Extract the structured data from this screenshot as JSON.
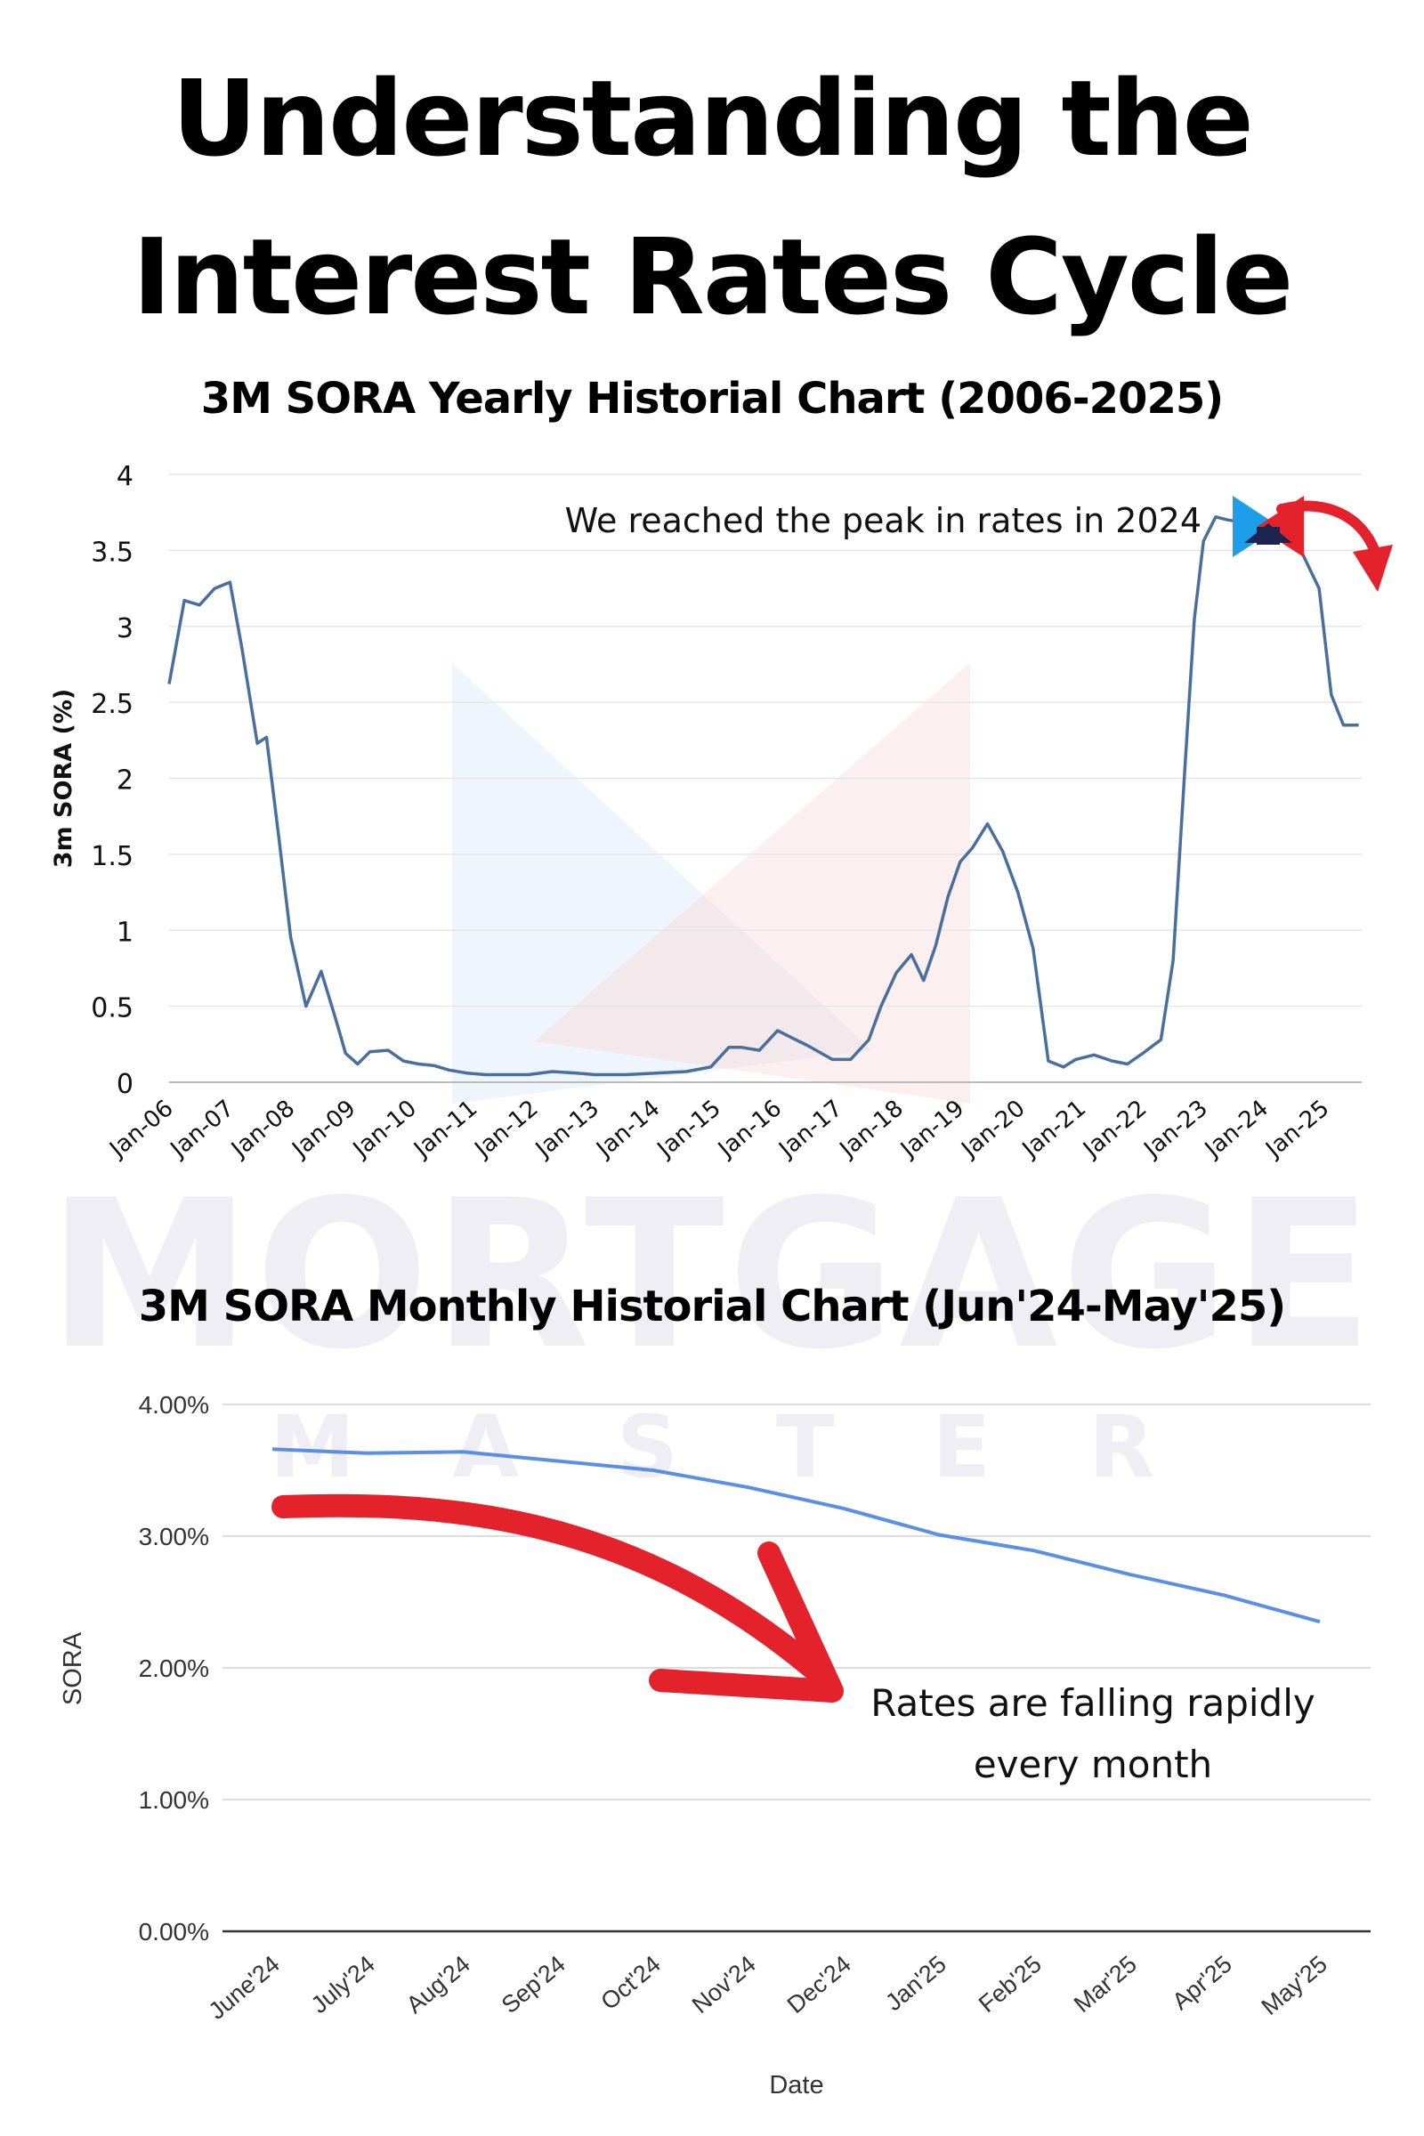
{
  "title_line1": "Understanding the",
  "title_line2": "Interest Rates Cycle",
  "watermark": {
    "line1": "MORTGAGE",
    "line2": "MASTER"
  },
  "colors": {
    "yearly_line": "#4a6f9c",
    "monthly_line": "#5b8fe6",
    "arrow": "#e4222b",
    "logo_blue": "#1e9ee8",
    "logo_red": "#e4222b",
    "logo_navy": "#1c2450"
  },
  "chart_data": [
    {
      "type": "line",
      "title": "3M SORA Yearly Historial Chart (2006-2025)",
      "ylabel": "3m SORA (%)",
      "xlabel": "",
      "ylim": [
        0,
        4
      ],
      "y_ticks": [
        "0",
        "0.5",
        "1",
        "1.5",
        "2",
        "2.5",
        "3",
        "3.5",
        "4"
      ],
      "x_ticks": [
        "Jan-06",
        "Jan-07",
        "Jan-08",
        "Jan-09",
        "Jan-10",
        "Jan-11",
        "Jan-12",
        "Jan-13",
        "Jan-14",
        "Jan-15",
        "Jan-16",
        "Jan-17",
        "Jan-18",
        "Jan-19",
        "Jan-20",
        "Jan-21",
        "Jan-22",
        "Jan-23",
        "Jan-24",
        "Jan-25"
      ],
      "x_range": [
        2006.0,
        2025.6
      ],
      "grid": true,
      "annotation": "We reached the peak in rates in 2024",
      "series": [
        {
          "x": [
            2006.0,
            2006.25,
            2006.5,
            2006.75,
            2007.0,
            2007.2,
            2007.45,
            2007.6,
            2007.8,
            2008.0,
            2008.25,
            2008.5,
            2008.75,
            2008.9,
            2009.1,
            2009.3,
            2009.6,
            2009.85,
            2010.1,
            2010.35,
            2010.6,
            2010.9,
            2011.2,
            2011.5,
            2011.9,
            2012.3,
            2012.7,
            2013.0,
            2013.5,
            2014.0,
            2014.5,
            2014.9,
            2015.2,
            2015.4,
            2015.7,
            2016.0,
            2016.2,
            2016.5,
            2016.9,
            2017.2,
            2017.5,
            2017.7,
            2017.95,
            2018.2,
            2018.4,
            2018.6,
            2018.8,
            2019.0,
            2019.2,
            2019.45,
            2019.7,
            2019.95,
            2020.2,
            2020.45,
            2020.7,
            2020.9,
            2021.2,
            2021.5,
            2021.75,
            2022.0,
            2022.3,
            2022.5,
            2022.7,
            2022.85,
            2023.0,
            2023.2,
            2023.4,
            2023.7,
            2024.0,
            2024.3,
            2024.6,
            2024.9,
            2025.1,
            2025.3,
            2025.55
          ],
          "y": [
            2.62,
            3.17,
            3.14,
            3.25,
            3.29,
            2.85,
            2.23,
            2.27,
            1.62,
            0.95,
            0.5,
            0.73,
            0.4,
            0.19,
            0.12,
            0.2,
            0.21,
            0.14,
            0.12,
            0.11,
            0.08,
            0.06,
            0.05,
            0.05,
            0.05,
            0.07,
            0.06,
            0.05,
            0.05,
            0.06,
            0.07,
            0.1,
            0.23,
            0.23,
            0.21,
            0.34,
            0.3,
            0.24,
            0.15,
            0.15,
            0.28,
            0.5,
            0.72,
            0.84,
            0.67,
            0.9,
            1.22,
            1.45,
            1.54,
            1.7,
            1.52,
            1.25,
            0.88,
            0.14,
            0.1,
            0.15,
            0.18,
            0.14,
            0.12,
            0.19,
            0.28,
            0.8,
            2.1,
            3.05,
            3.56,
            3.72,
            3.7,
            3.68,
            3.66,
            3.62,
            3.5,
            3.25,
            2.55,
            2.35,
            2.35
          ]
        }
      ]
    },
    {
      "type": "line",
      "title": "3M SORA Monthly Historial Chart (Jun'24-May'25)",
      "ylabel": "SORA",
      "xlabel": "Date",
      "ylim": [
        0,
        4
      ],
      "y_ticks": [
        "0.00%",
        "1.00%",
        "2.00%",
        "3.00%",
        "4.00%"
      ],
      "categories": [
        "June'24",
        "July'24",
        "Aug'24",
        "Sep'24",
        "Oct'24",
        "Nov'24",
        "Dec'24",
        "Jan'25",
        "Feb'25",
        "Mar'25",
        "Apr'25",
        "May'25"
      ],
      "grid": true,
      "annotation_line1": "Rates are falling rapidly",
      "annotation_line2": "every month",
      "series": [
        {
          "values": [
            3.66,
            3.63,
            3.64,
            3.57,
            3.5,
            3.37,
            3.21,
            3.01,
            2.89,
            2.71,
            2.55,
            2.35
          ]
        }
      ]
    }
  ]
}
